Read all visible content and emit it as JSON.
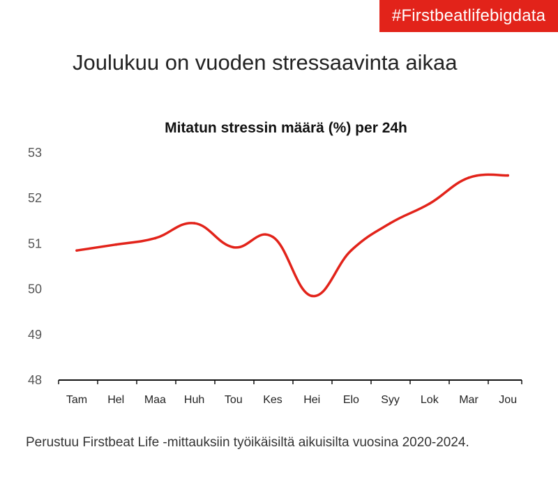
{
  "banner": {
    "hashtag": "#Firstbeatlifebigdata",
    "color": "#e2231a"
  },
  "page_title": "Joulukuu on vuoden stressaavinta aikaa",
  "footnote": "Perustuu Firstbeat Life -mittauksiin työikäisiltä aikuisilta vuosina 2020-2024.",
  "chart_data": {
    "type": "line",
    "title": "Mitatun stressin määrä (%) per 24h",
    "xlabel": "",
    "ylabel": "",
    "categories": [
      "Tam",
      "Hel",
      "Maa",
      "Huh",
      "Tou",
      "Kes",
      "Hei",
      "Elo",
      "Syy",
      "Lok",
      "Mar",
      "Jou"
    ],
    "series": [
      {
        "values": [
          50.85,
          50.98,
          51.12,
          51.45,
          50.92,
          51.15,
          49.85,
          50.85,
          51.45,
          51.88,
          52.45,
          52.5
        ],
        "color": "#e2231a"
      }
    ],
    "ylim": [
      48,
      53
    ],
    "yticks": [
      48,
      49,
      50,
      51,
      52,
      53
    ],
    "grid": false,
    "legend": "none"
  }
}
